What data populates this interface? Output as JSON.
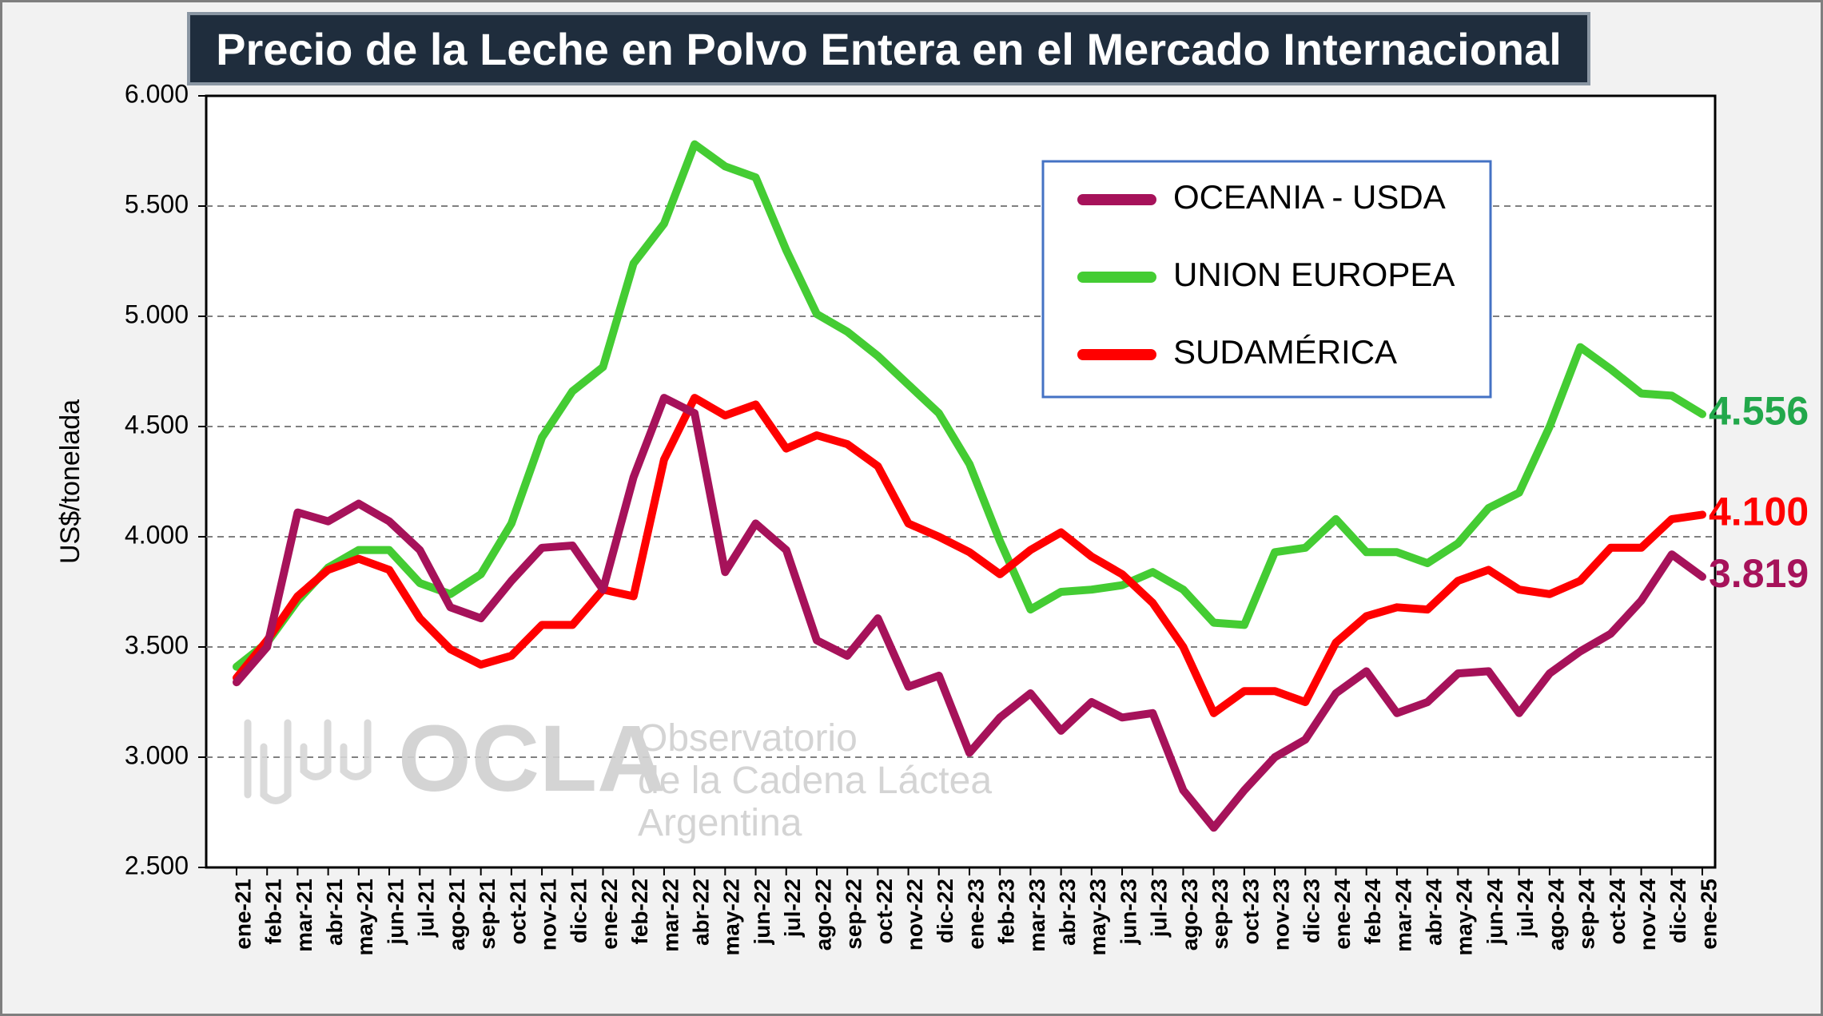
{
  "title": "Precio de la Leche en Polvo Entera en el Mercado Internacional",
  "watermark": {
    "logo_text": "OCLA",
    "line1": "Observatorio",
    "line2": "de la Cadena Láctea",
    "line3": "Argentina"
  },
  "chart_data": {
    "type": "line",
    "title": "Precio de la Leche en Polvo Entera en el Mercado Internacional",
    "xlabel": "",
    "ylabel": "US$/tonelada",
    "ylim": [
      2500,
      6000
    ],
    "yticks": [
      2500,
      3000,
      3500,
      4000,
      4500,
      5000,
      5500,
      6000
    ],
    "ytick_labels": [
      "2.500",
      "3.000",
      "3.500",
      "4.000",
      "4.500",
      "5.000",
      "5.500",
      "6.000"
    ],
    "grid": "horizontal-dashed",
    "legend_position": "top-right",
    "categories": [
      "ene-21",
      "feb-21",
      "mar-21",
      "abr-21",
      "may-21",
      "jun-21",
      "jul-21",
      "ago-21",
      "sep-21",
      "oct-21",
      "nov-21",
      "dic-21",
      "ene-22",
      "feb-22",
      "mar-22",
      "abr-22",
      "may-22",
      "jun-22",
      "jul-22",
      "ago-22",
      "sep-22",
      "oct-22",
      "nov-22",
      "dic-22",
      "ene-23",
      "feb-23",
      "mar-23",
      "abr-23",
      "may-23",
      "jun-23",
      "jul-23",
      "ago-23",
      "sep-23",
      "oct-23",
      "nov-23",
      "dic-23",
      "ene-24",
      "feb-24",
      "mar-24",
      "abr-24",
      "may-24",
      "jun-24",
      "jul-24",
      "ago-24",
      "sep-24",
      "oct-24",
      "nov-24",
      "dic-24",
      "ene-25"
    ],
    "series": [
      {
        "name": "OCEANIA - USDA",
        "color": "#a6125a",
        "end_label": "3.819",
        "values": [
          3340,
          3500,
          4110,
          4070,
          4150,
          4070,
          3940,
          3680,
          3630,
          3800,
          3950,
          3960,
          3760,
          4270,
          4630,
          4560,
          3840,
          4060,
          3940,
          3530,
          3460,
          3630,
          3320,
          3370,
          3020,
          3180,
          3290,
          3120,
          3250,
          3180,
          3200,
          2850,
          2680,
          2850,
          3000,
          3080,
          3290,
          3390,
          3200,
          3250,
          3380,
          3390,
          3200,
          3380,
          3480,
          3560,
          3710,
          3920,
          3819
        ]
      },
      {
        "name": "UNION EUROPEA",
        "color": "#44cc33",
        "end_label": "4.556",
        "values": [
          3410,
          3520,
          3710,
          3860,
          3940,
          3940,
          3790,
          3740,
          3830,
          4060,
          4450,
          4660,
          4770,
          5240,
          5420,
          5780,
          5680,
          5630,
          5300,
          5010,
          4930,
          4820,
          4690,
          4560,
          4330,
          3980,
          3670,
          3750,
          3760,
          3780,
          3840,
          3760,
          3610,
          3600,
          3930,
          3950,
          4080,
          3930,
          3930,
          3880,
          3970,
          4130,
          4200,
          4500,
          4860,
          4760,
          4650,
          4640,
          4556
        ]
      },
      {
        "name": "SUDAMÉRICA",
        "color": "#ff0000",
        "end_label": "4.100",
        "values": [
          3360,
          3530,
          3730,
          3850,
          3900,
          3850,
          3630,
          3490,
          3420,
          3460,
          3600,
          3600,
          3760,
          3730,
          4350,
          4630,
          4550,
          4600,
          4400,
          4460,
          4420,
          4320,
          4060,
          4000,
          3930,
          3830,
          3940,
          4020,
          3910,
          3830,
          3700,
          3500,
          3200,
          3300,
          3300,
          3250,
          3520,
          3640,
          3680,
          3670,
          3800,
          3850,
          3760,
          3740,
          3800,
          3950,
          3950,
          4080,
          4100
        ]
      }
    ]
  }
}
